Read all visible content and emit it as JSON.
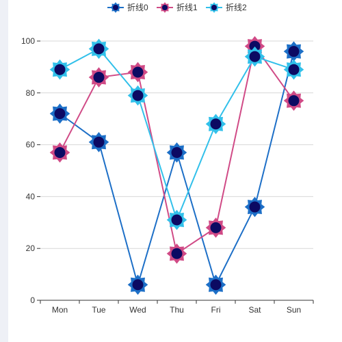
{
  "chart_data": {
    "type": "line",
    "categories": [
      "Mon",
      "Tue",
      "Wed",
      "Thu",
      "Fri",
      "Sat",
      "Sun"
    ],
    "series": [
      {
        "name": "折线0",
        "values": [
          72,
          61,
          6,
          57,
          6,
          36,
          96
        ]
      },
      {
        "name": "折线1",
        "values": [
          57,
          86,
          88,
          18,
          28,
          98,
          77
        ]
      },
      {
        "name": "折线2",
        "values": [
          89,
          97,
          79,
          31,
          68,
          94,
          89
        ]
      }
    ],
    "ylim": [
      0,
      100
    ],
    "yticks": [
      0,
      20,
      40,
      60,
      80,
      100
    ],
    "grid": true,
    "legend": "top-center",
    "colors": {
      "series0": "#1d6fc7",
      "series1": "#d04a86",
      "series2": "#31c0ea",
      "marker_fill": "#0c0a63",
      "grid": "#d7d7d7",
      "axis": "#333333"
    }
  }
}
